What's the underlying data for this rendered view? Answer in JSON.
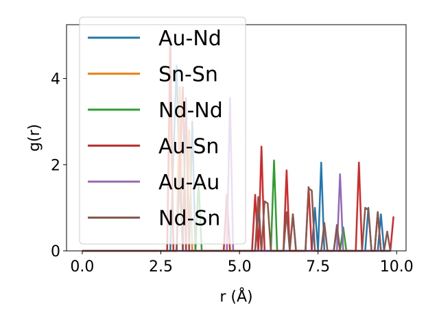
{
  "chart_data": {
    "type": "line",
    "xlabel": "r (Å)",
    "ylabel": "g(r)",
    "xlim": [
      -0.5,
      10.3
    ],
    "ylim": [
      0,
      5.25
    ],
    "xticks": [
      0.0,
      2.5,
      5.0,
      7.5,
      10.0
    ],
    "xtick_labels": [
      "0.0",
      "2.5",
      "5.0",
      "7.5",
      "10.0"
    ],
    "yticks": [
      0,
      2,
      4
    ],
    "ytick_labels": [
      "0",
      "2",
      "4"
    ],
    "grid": false,
    "legend_position": "top-left",
    "series": [
      {
        "name": "Au-Nd",
        "color": "#1f77b4",
        "x": [
          0,
          2.8,
          2.9,
          3.0,
          3.1,
          3.2,
          3.4,
          3.5,
          3.6,
          3.7,
          3.8,
          5.5,
          5.6,
          5.7,
          7.3,
          7.4,
          7.5,
          7.6,
          7.7,
          7.8,
          8.0,
          8.1,
          8.2,
          8.3,
          8.4,
          9.0,
          9.1,
          9.2,
          9.3,
          9.4,
          9.5,
          9.6,
          9.7,
          9.8
        ],
        "values": [
          0,
          0,
          2.2,
          4.3,
          1.5,
          0,
          0,
          3.0,
          0,
          0,
          0,
          0,
          1.0,
          0,
          0,
          1.0,
          0,
          2.05,
          0,
          0,
          0,
          0.5,
          0,
          0,
          0,
          0,
          1.0,
          0,
          0,
          0,
          0.85,
          0,
          0,
          0
        ]
      },
      {
        "name": "Sn-Sn",
        "color": "#ff7f0e",
        "x": [
          0,
          2.6,
          2.7,
          2.8,
          2.9,
          3.0,
          3.1,
          3.2,
          3.3,
          3.4,
          3.5,
          3.6,
          9.8
        ],
        "values": [
          0,
          0,
          0,
          3.7,
          0,
          0,
          3.8,
          0,
          0,
          2.8,
          0,
          0,
          0
        ]
      },
      {
        "name": "Nd-Nd",
        "color": "#2ca02c",
        "x": [
          0,
          3.6,
          3.7,
          3.8,
          3.9,
          5.9,
          6.0,
          6.1,
          6.2,
          6.3,
          6.4,
          8.2,
          8.3,
          8.4,
          8.5,
          9.8
        ],
        "values": [
          0,
          0,
          1.6,
          0,
          0,
          0,
          0,
          2.1,
          0,
          0,
          0,
          0,
          0.55,
          0,
          0,
          0
        ]
      },
      {
        "name": "Au-Sn",
        "color": "#d62728",
        "x": [
          0,
          2.7,
          2.8,
          2.9,
          3.0,
          3.1,
          3.2,
          3.3,
          3.4,
          4.4,
          4.5,
          4.6,
          4.7,
          5.4,
          5.5,
          5.6,
          5.7,
          5.8,
          5.9,
          6.0,
          6.1,
          6.2,
          6.3,
          6.4,
          6.5,
          6.6,
          7.1,
          7.2,
          7.3,
          7.4,
          7.5,
          7.6,
          7.7,
          7.8,
          8.6,
          8.7,
          8.8,
          8.9,
          9.0,
          9.1,
          9.2,
          9.3,
          9.4,
          9.5,
          9.6,
          9.7,
          9.8,
          9.9
        ],
        "values": [
          0,
          0,
          4.95,
          0,
          0,
          2.0,
          3.8,
          0,
          0,
          0,
          0,
          1.3,
          0,
          0,
          1.3,
          0,
          2.42,
          0,
          0,
          0,
          0,
          0,
          0,
          0,
          1.87,
          0,
          0,
          1.48,
          0,
          0,
          0,
          0,
          0,
          0,
          0,
          0,
          2.05,
          0,
          0,
          0,
          0,
          0,
          0.9,
          0,
          0,
          0,
          0,
          0.8
        ]
      },
      {
        "name": "Au-Au",
        "color": "#9467bd",
        "x": [
          0,
          4.5,
          4.6,
          4.7,
          4.8,
          6.6,
          6.7,
          6.8,
          6.9,
          8.0,
          8.1,
          8.2,
          8.3,
          9.8
        ],
        "values": [
          0,
          0,
          0,
          3.55,
          0,
          0,
          0.85,
          0,
          0,
          0,
          0,
          1.78,
          0,
          0
        ]
      },
      {
        "name": "Nd-Sn",
        "color": "#8c564b",
        "x": [
          0,
          3.0,
          3.1,
          3.2,
          3.3,
          3.4,
          5.5,
          5.6,
          5.7,
          5.8,
          5.9,
          6.0,
          6.1,
          6.2,
          6.3,
          6.4,
          6.5,
          6.6,
          6.7,
          6.8,
          7.0,
          7.1,
          7.2,
          7.3,
          7.4,
          7.5,
          7.6,
          7.7,
          7.8,
          7.9,
          8.0,
          8.1,
          8.2,
          8.3,
          8.4,
          8.9,
          9.0,
          9.1,
          9.2,
          9.3,
          9.4,
          9.5,
          9.6,
          9.7,
          9.8
        ],
        "values": [
          0,
          0,
          1.9,
          0,
          3.55,
          0,
          0,
          1.25,
          0,
          1.15,
          1.1,
          0,
          0,
          0,
          0,
          0,
          0.9,
          0,
          0.85,
          0,
          0,
          0,
          1.45,
          1.4,
          0,
          0,
          0,
          0.65,
          0,
          0,
          0,
          0.6,
          0,
          0,
          0,
          0,
          1.0,
          0.95,
          0,
          0,
          0.9,
          0,
          0,
          0.45,
          0
        ]
      }
    ]
  }
}
